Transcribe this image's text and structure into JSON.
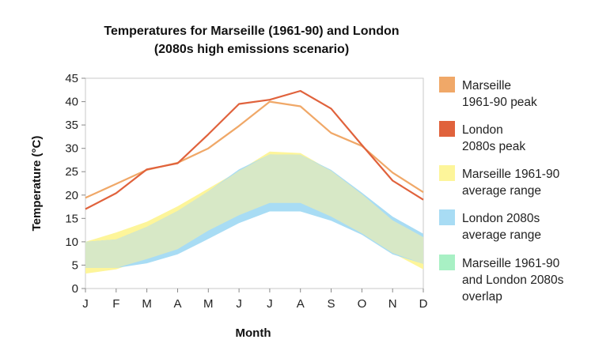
{
  "chart_data": {
    "type": "line",
    "title_lines": [
      "Temperatures for Marseille (1961-90) and London",
      "(2080s high emissions scenario)"
    ],
    "xlabel": "Month",
    "ylabel": "Temperature (°C)",
    "categories": [
      "J",
      "F",
      "M",
      "A",
      "M",
      "J",
      "J",
      "A",
      "S",
      "O",
      "N",
      "D"
    ],
    "y_ticks": [
      "0",
      "5",
      "10",
      "15",
      "20",
      "25",
      "30",
      "35",
      "40",
      "45"
    ],
    "ylim": [
      0,
      45
    ],
    "grid": false,
    "legend_position": "right",
    "series": [
      {
        "name": "Marseille 1961-90 peak",
        "legend_lines": [
          "Marseille",
          "1961-90 peak"
        ],
        "kind": "line",
        "color": "#f0a868",
        "values": [
          19.4,
          22.4,
          25.4,
          26.9,
          30.0,
          34.8,
          40.0,
          39.0,
          33.3,
          30.5,
          24.8,
          20.6
        ]
      },
      {
        "name": "London 2080s peak",
        "legend_lines": [
          "London",
          "2080s peak"
        ],
        "kind": "line",
        "color": "#e0623c",
        "values": [
          17.0,
          20.4,
          25.5,
          26.8,
          33.0,
          39.5,
          40.4,
          42.3,
          38.5,
          30.7,
          23.1,
          19.0
        ]
      },
      {
        "name": "Marseille 1961-90 average range",
        "legend_lines": [
          "Marseille 1961-90",
          "average range"
        ],
        "kind": "range",
        "color": "#fdf59a",
        "low": [
          3.2,
          4.1,
          6.3,
          8.4,
          12.4,
          15.7,
          18.3,
          18.3,
          15.4,
          11.8,
          7.6,
          4.1
        ],
        "high": [
          10.0,
          12.0,
          14.3,
          17.6,
          21.4,
          25.2,
          29.3,
          29.0,
          25.2,
          20.2,
          14.6,
          11.0
        ]
      },
      {
        "name": "London 2080s average range",
        "legend_lines": [
          "London 2080s",
          "average range"
        ],
        "kind": "range",
        "color": "#a8dcf4",
        "low": [
          4.4,
          4.4,
          5.4,
          7.3,
          10.6,
          14.0,
          16.5,
          16.5,
          14.5,
          11.5,
          7.3,
          5.3
        ],
        "high": [
          10.0,
          10.5,
          13.2,
          16.6,
          20.8,
          25.5,
          28.7,
          28.6,
          25.4,
          20.5,
          15.4,
          11.7
        ]
      },
      {
        "name": "Marseille 1961-90 and London 2080s overlap",
        "legend_lines": [
          "Marseille 1961-90",
          "and London 2080s",
          "overlap"
        ],
        "kind": "overlap",
        "color": "#d7e8c6",
        "legend_color": "#a8f0c4"
      }
    ]
  }
}
